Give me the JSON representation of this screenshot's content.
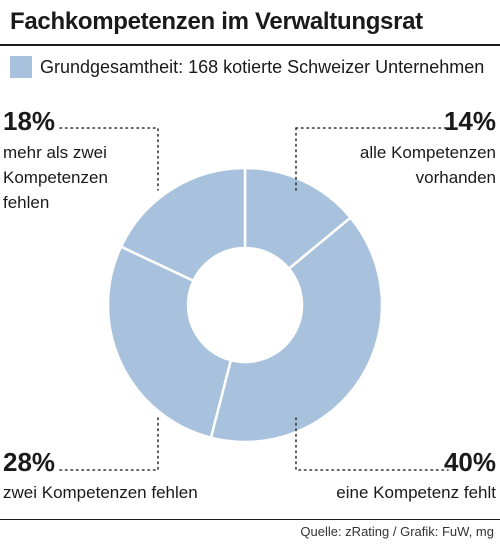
{
  "header": {
    "title": "Fachkompetenzen im Verwaltungsrat"
  },
  "legend": {
    "label": "Grundgesamtheit: 168 kotierte Schweizer Unternehmen",
    "color": "#a8c1dc"
  },
  "chart_data": {
    "type": "pie",
    "variant": "donut",
    "series": [
      {
        "name": "Grundgesamtheit: 168 kotierte Schweizer Unternehmen",
        "values": [
          14,
          40,
          28,
          18
        ]
      }
    ],
    "categories": [
      "alle Kompetenzen vorhanden",
      "eine Kompetenz fehlt",
      "zwei Kompetenzen fehlen",
      "mehr als zwei Kompetenzen fehlen"
    ],
    "value_labels": [
      "14%",
      "40%",
      "28%",
      "18%"
    ],
    "label_lines": [
      [
        "alle Kompetenzen",
        "vorhanden"
      ],
      [
        "eine Kompetenz fehlt"
      ],
      [
        "zwei Kompetenzen fehlen"
      ],
      [
        "mehr als zwei",
        "Kompetenzen",
        "fehlen"
      ]
    ],
    "slice_color": "#a8c1dc",
    "separator_color": "#ffffff",
    "leader_color": "#333333"
  },
  "footer": {
    "source": "Quelle: zRating / Grafik: FuW, mg"
  }
}
